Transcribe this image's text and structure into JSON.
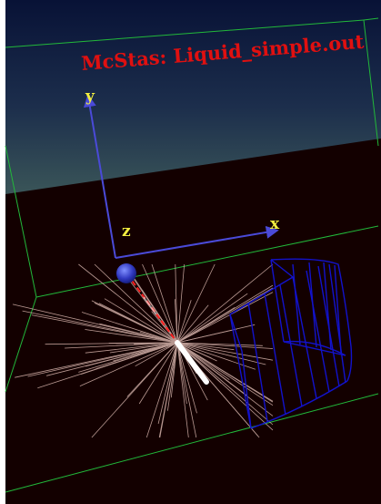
{
  "title": "McStas: Liquid_simple.out",
  "axes": {
    "y_label": "y",
    "z_label": "z",
    "x_label": "x"
  },
  "colors": {
    "background_bottom": "#120000",
    "background_top_gradient_start": "#0b1740",
    "background_top_gradient_end": "#2f4a55",
    "box_edges": "#22c040",
    "axis_arrows": "#4a4ad8",
    "axis_labels": "#f2ee40",
    "title": "#e01010",
    "neutron_beam": "#ff2020",
    "scattered_rays": "#d8b8b0",
    "detector_wireframe": "#1010c8",
    "source_sphere": "#3840c8"
  },
  "icons": {
    "source": "sphere-icon",
    "sample": "scattering-sample-icon",
    "detector": "cylindrical-detector-icon"
  }
}
